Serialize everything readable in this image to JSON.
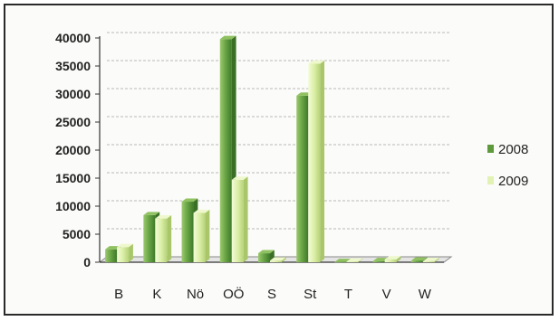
{
  "chart_data": {
    "type": "bar",
    "title": "",
    "xlabel": "",
    "ylabel": "",
    "categories": [
      "B",
      "K",
      "Nö",
      "OÖ",
      "S",
      "St",
      "T",
      "V",
      "W"
    ],
    "series": [
      {
        "name": "2008",
        "values": [
          2300,
          8400,
          10800,
          39800,
          1600,
          29700,
          50,
          200,
          300
        ],
        "color": "#5e9a3c"
      },
      {
        "name": "2009",
        "values": [
          2700,
          7800,
          8800,
          14700,
          300,
          35400,
          100,
          500,
          200
        ],
        "color": "#d6ec9e"
      }
    ],
    "ylim": [
      0,
      40000
    ],
    "yticks": [
      0,
      5000,
      10000,
      15000,
      20000,
      25000,
      30000,
      35000,
      40000
    ],
    "grid": true,
    "legend": "right"
  }
}
